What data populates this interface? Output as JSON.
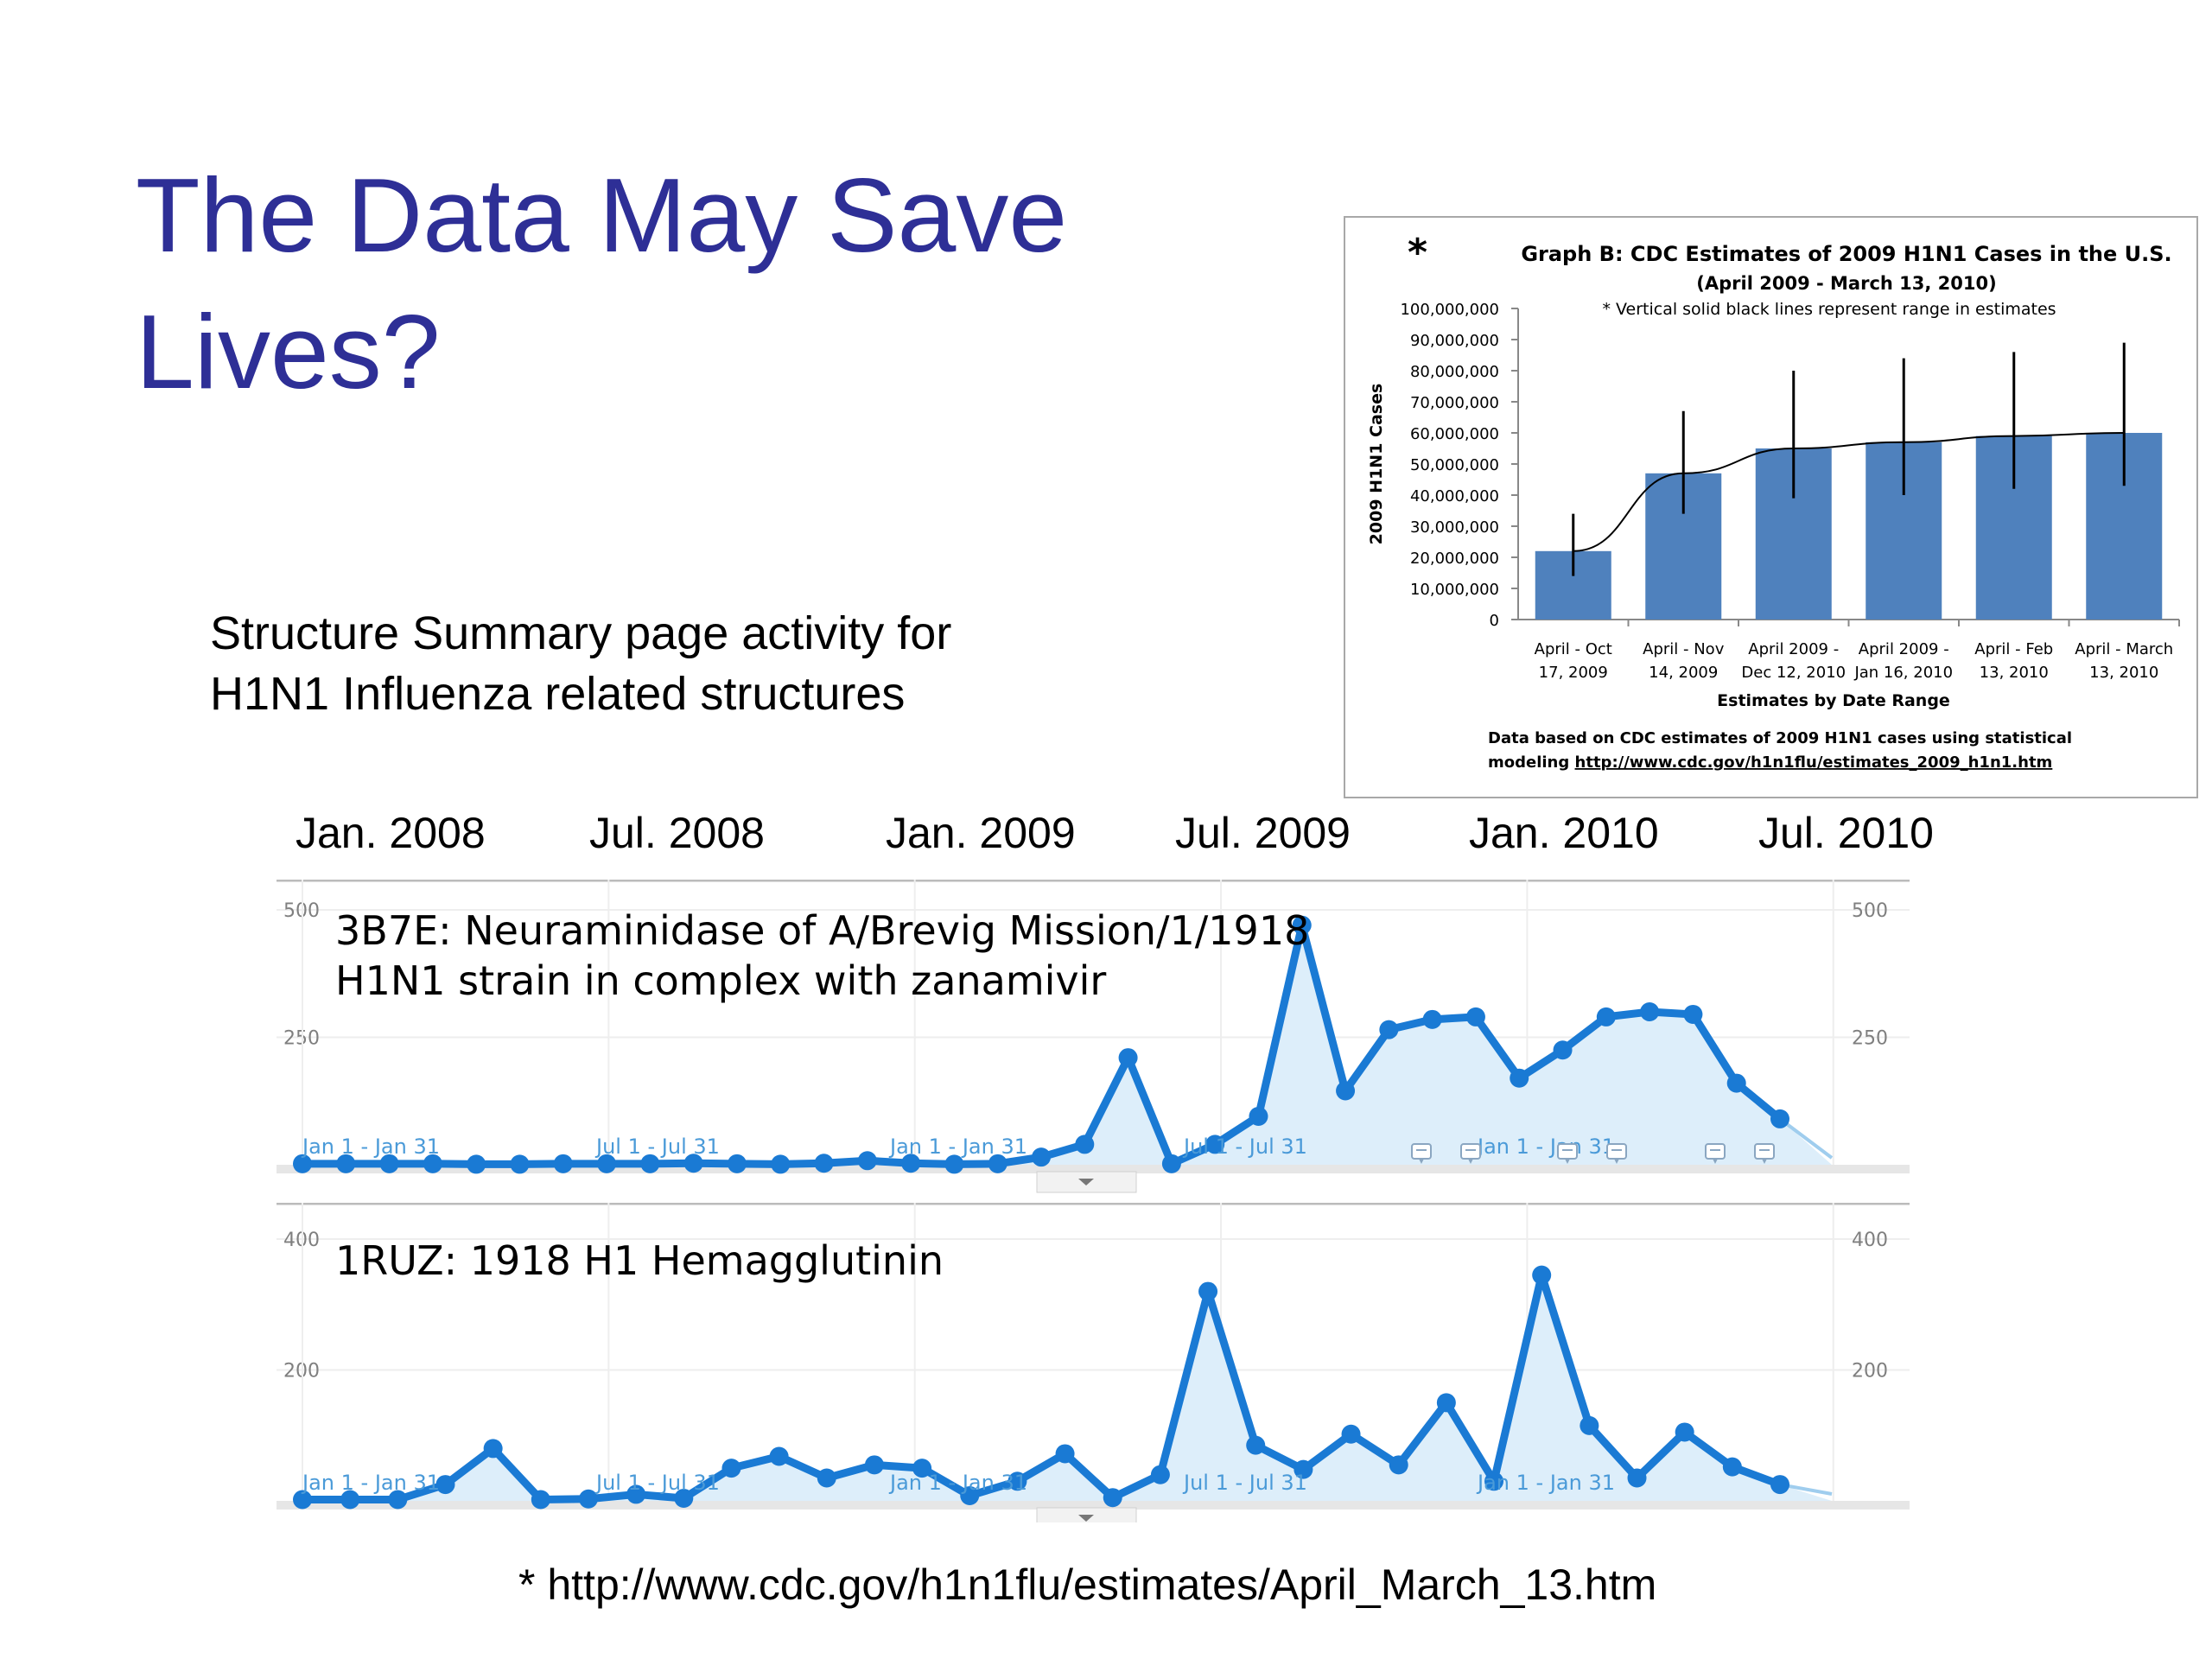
{
  "slide": {
    "title_line1": "The Data May Save",
    "title_line2": "Lives?",
    "caption_line1": "Structure Summary page activity for",
    "caption_line2": "H1N1 Influenza related structures",
    "footnote": "* http://www.cdc.gov/h1n1flu/estimates/April_March_13.htm",
    "timeline": [
      "Jan. 2008",
      "Jul. 2008",
      "Jan. 2009",
      "Jul. 2009",
      "Jan. 2010",
      "Jul. 2010"
    ]
  },
  "colors": {
    "title": "#2e2f96",
    "cdc_bar": "#4f81bd",
    "activity_line": "#1a7ad4",
    "activity_fill": "#ddeefa",
    "axis_text": "#7f7f7f"
  },
  "chart_data": [
    {
      "type": "bar",
      "asterisk": "*",
      "title": "Graph B: CDC Estimates of 2009 H1N1 Cases in the U.S.",
      "subtitle": "(April 2009 - March 13, 2010)",
      "annotation": "* Vertical solid black lines represent range in estimates",
      "categories": [
        [
          "April - Oct",
          "17, 2009"
        ],
        [
          "April - Nov",
          "14, 2009"
        ],
        [
          "April 2009 -",
          "Dec 12, 2010"
        ],
        [
          "April 2009 -",
          "Jan 16, 2010"
        ],
        [
          "April - Feb",
          "13, 2010"
        ],
        [
          "April - March",
          "13, 2010"
        ]
      ],
      "values": [
        22000000,
        47000000,
        55000000,
        57000000,
        59000000,
        60000000
      ],
      "ranges": [
        [
          14000000,
          34000000
        ],
        [
          34000000,
          67000000
        ],
        [
          39000000,
          80000000
        ],
        [
          40000000,
          84000000
        ],
        [
          42000000,
          86000000
        ],
        [
          43000000,
          89000000
        ]
      ],
      "trendline": true,
      "ylim": [
        0,
        100000000
      ],
      "yticks": [
        "0",
        "10,000,000",
        "20,000,000",
        "30,000,000",
        "40,000,000",
        "50,000,000",
        "60,000,000",
        "70,000,000",
        "80,000,000",
        "90,000,000",
        "100,000,000"
      ],
      "ylabel": "2009 H1N1 Cases",
      "xlabel": "Estimates by Date Range",
      "source_note": "Data based on CDC estimates of 2009 H1N1 cases using statistical",
      "source_prefix": "modeling ",
      "source_link": "http://www.cdc.gov/h1n1flu/estimates_2009_h1n1.htm"
    },
    {
      "type": "area",
      "title_line1": "3B7E: Neuraminidase of A/Brevig Mission/1/1918",
      "title_line2": "H1N1 strain in complex with zanamivir",
      "ylim": [
        0,
        500
      ],
      "yticks": [
        "500",
        "250"
      ],
      "period_labels": [
        "Jan 1 - Jan 31",
        "Jul 1 - Jul 31",
        "Jan 1 - Jan 31",
        "Jul 1 - Jul 31",
        "Jan 1 - Jan 31"
      ],
      "values": [
        2,
        2,
        2,
        2,
        1,
        1,
        2,
        2,
        2,
        3,
        2,
        1,
        3,
        8,
        3,
        1,
        2,
        15,
        40,
        210,
        2,
        40,
        95,
        470,
        145,
        265,
        285,
        290,
        170,
        225,
        290,
        300,
        295,
        160,
        90
      ],
      "grid": true,
      "legend": "none"
    },
    {
      "type": "area",
      "title": "1RUZ: 1918 H1 Hemagglutinin",
      "ylim": [
        0,
        400
      ],
      "yticks": [
        "400",
        "200"
      ],
      "period_labels": [
        "Jan 1 - Jan 31",
        "Jul 1 - Jul 31",
        "Jan 1 - Jan 31",
        "Jul 1 - Jul 31",
        "Jan 1 - Jan 31"
      ],
      "values": [
        2,
        2,
        2,
        25,
        80,
        2,
        3,
        10,
        4,
        50,
        68,
        35,
        55,
        50,
        8,
        30,
        72,
        5,
        40,
        320,
        85,
        48,
        102,
        55,
        150,
        30,
        345,
        115,
        35,
        105,
        52,
        25
      ],
      "grid": true,
      "legend": "none"
    }
  ]
}
